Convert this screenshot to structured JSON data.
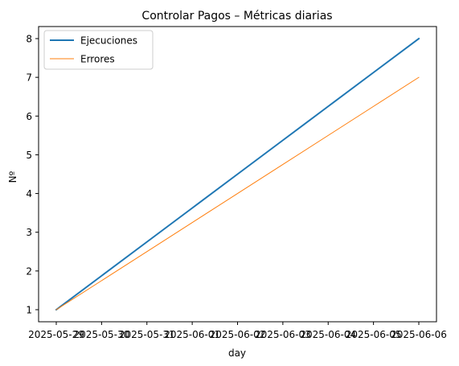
{
  "chart_data": {
    "type": "line",
    "title": "Controlar Pagos – Métricas diarias",
    "xlabel": "day",
    "ylabel": "Nº",
    "x": [
      "2025-05-29",
      "2025-05-30",
      "2025-05-31",
      "2025-06-01",
      "2025-06-02",
      "2025-06-03",
      "2025-06-04",
      "2025-06-05",
      "2025-06-06"
    ],
    "xticks": [
      "2025-05-29",
      "2025-05-30",
      "2025-05-31",
      "2025-06-01",
      "2025-06-02",
      "2025-06-03",
      "2025-06-04",
      "2025-06-05",
      "2025-06-06"
    ],
    "yticks": [
      1,
      2,
      3,
      4,
      5,
      6,
      7,
      8
    ],
    "xlim": [
      "2025-05-29",
      "2025-06-06"
    ],
    "ylim": [
      1,
      8
    ],
    "grid": false,
    "legend_position": "upper-left",
    "series": [
      {
        "name": "Ejecuciones",
        "color": "#1f77b4",
        "values": [
          1,
          1.875,
          2.75,
          3.625,
          4.5,
          5.375,
          6.25,
          7.125,
          8
        ]
      },
      {
        "name": "Errores",
        "color": "#ff7f0e",
        "values": [
          1,
          1.75,
          2.5,
          3.25,
          4,
          4.75,
          5.5,
          6.25,
          7
        ]
      }
    ]
  }
}
